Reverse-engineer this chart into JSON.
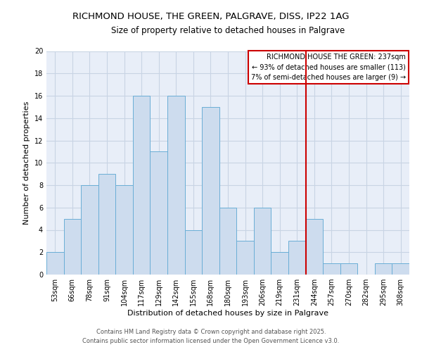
{
  "title": "RICHMOND HOUSE, THE GREEN, PALGRAVE, DISS, IP22 1AG",
  "subtitle": "Size of property relative to detached houses in Palgrave",
  "xlabel": "Distribution of detached houses by size in Palgrave",
  "ylabel": "Number of detached properties",
  "bar_labels": [
    "53sqm",
    "66sqm",
    "78sqm",
    "91sqm",
    "104sqm",
    "117sqm",
    "129sqm",
    "142sqm",
    "155sqm",
    "168sqm",
    "180sqm",
    "193sqm",
    "206sqm",
    "219sqm",
    "231sqm",
    "244sqm",
    "257sqm",
    "270sqm",
    "282sqm",
    "295sqm",
    "308sqm"
  ],
  "bar_values": [
    2,
    5,
    8,
    9,
    8,
    16,
    11,
    16,
    4,
    15,
    6,
    3,
    6,
    2,
    3,
    5,
    1,
    1,
    0,
    1,
    1
  ],
  "bar_color": "#cddcee",
  "bar_edge_color": "#6aaed6",
  "ylim": [
    0,
    20
  ],
  "yticks": [
    0,
    2,
    4,
    6,
    8,
    10,
    12,
    14,
    16,
    18,
    20
  ],
  "vline_x": 14.5,
  "vline_color": "#cc0000",
  "annotation_title": "RICHMOND HOUSE THE GREEN: 237sqm",
  "annotation_line1": "← 93% of detached houses are smaller (113)",
  "annotation_line2": "7% of semi-detached houses are larger (9) →",
  "annotation_box_color": "#cc0000",
  "grid_color": "#c8d4e4",
  "background_color": "#e8eef8",
  "footer_line1": "Contains HM Land Registry data © Crown copyright and database right 2025.",
  "footer_line2": "Contains public sector information licensed under the Open Government Licence v3.0.",
  "title_fontsize": 9.5,
  "subtitle_fontsize": 8.5,
  "axis_label_fontsize": 8,
  "tick_fontsize": 7,
  "annotation_fontsize": 7,
  "footer_fontsize": 6
}
